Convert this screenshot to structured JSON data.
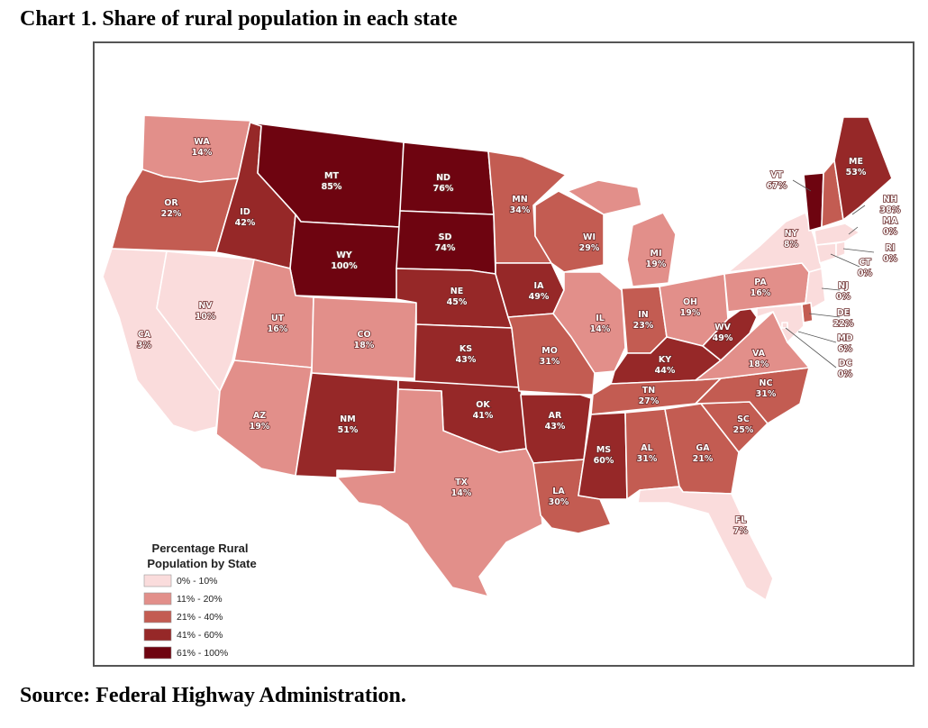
{
  "title": "Chart 1. Share of rural population in each state",
  "source": "Source: Federal Highway Administration.",
  "legend": {
    "title_line1": "Percentage Rural",
    "title_line2": "Population by State",
    "classes": [
      {
        "label": "0% - 10%",
        "color": "#fadcdc"
      },
      {
        "label": "11% - 20%",
        "color": "#e28f8a"
      },
      {
        "label": "21% - 40%",
        "color": "#c35c52"
      },
      {
        "label": "41% - 60%",
        "color": "#962828"
      },
      {
        "label": "61% - 100%",
        "color": "#6e0410"
      }
    ]
  },
  "states": {
    "WA": {
      "code": "WA",
      "value": "14%",
      "class": 1
    },
    "OR": {
      "code": "OR",
      "value": "22%",
      "class": 2
    },
    "CA": {
      "code": "CA",
      "value": "3%",
      "class": 0
    },
    "NV": {
      "code": "NV",
      "value": "10%",
      "class": 0
    },
    "ID": {
      "code": "ID",
      "value": "42%",
      "class": 3
    },
    "MT": {
      "code": "MT",
      "value": "85%",
      "class": 4
    },
    "WY": {
      "code": "WY",
      "value": "100%",
      "class": 4
    },
    "UT": {
      "code": "UT",
      "value": "16%",
      "class": 1
    },
    "AZ": {
      "code": "AZ",
      "value": "19%",
      "class": 1
    },
    "CO": {
      "code": "CO",
      "value": "18%",
      "class": 1
    },
    "NM": {
      "code": "NM",
      "value": "51%",
      "class": 3
    },
    "ND": {
      "code": "ND",
      "value": "76%",
      "class": 4
    },
    "SD": {
      "code": "SD",
      "value": "74%",
      "class": 4
    },
    "NE": {
      "code": "NE",
      "value": "45%",
      "class": 3
    },
    "KS": {
      "code": "KS",
      "value": "43%",
      "class": 3
    },
    "OK": {
      "code": "OK",
      "value": "41%",
      "class": 3
    },
    "TX": {
      "code": "TX",
      "value": "14%",
      "class": 1
    },
    "MN": {
      "code": "MN",
      "value": "34%",
      "class": 2
    },
    "IA": {
      "code": "IA",
      "value": "49%",
      "class": 3
    },
    "MO": {
      "code": "MO",
      "value": "31%",
      "class": 2
    },
    "AR": {
      "code": "AR",
      "value": "43%",
      "class": 3
    },
    "LA": {
      "code": "LA",
      "value": "30%",
      "class": 2
    },
    "WI": {
      "code": "WI",
      "value": "29%",
      "class": 2
    },
    "IL": {
      "code": "IL",
      "value": "14%",
      "class": 1
    },
    "MI": {
      "code": "MI",
      "value": "19%",
      "class": 1
    },
    "IN": {
      "code": "IN",
      "value": "23%",
      "class": 2
    },
    "OH": {
      "code": "OH",
      "value": "19%",
      "class": 1
    },
    "KY": {
      "code": "KY",
      "value": "44%",
      "class": 3
    },
    "TN": {
      "code": "TN",
      "value": "27%",
      "class": 2
    },
    "MS": {
      "code": "MS",
      "value": "60%",
      "class": 3
    },
    "AL": {
      "code": "AL",
      "value": "31%",
      "class": 2
    },
    "GA": {
      "code": "GA",
      "value": "21%",
      "class": 2
    },
    "FL": {
      "code": "FL",
      "value": "7%",
      "class": 0
    },
    "SC": {
      "code": "SC",
      "value": "25%",
      "class": 2
    },
    "NC": {
      "code": "NC",
      "value": "31%",
      "class": 2
    },
    "VA": {
      "code": "VA",
      "value": "18%",
      "class": 1
    },
    "WV": {
      "code": "WV",
      "value": "49%",
      "class": 3
    },
    "PA": {
      "code": "PA",
      "value": "16%",
      "class": 1
    },
    "NY": {
      "code": "NY",
      "value": "8%",
      "class": 0
    },
    "VT": {
      "code": "VT",
      "value": "67%",
      "class": 4
    },
    "NH": {
      "code": "NH",
      "value": "38%",
      "class": 2
    },
    "ME": {
      "code": "ME",
      "value": "53%",
      "class": 3
    },
    "MA": {
      "code": "MA",
      "value": "0%",
      "class": 0
    },
    "RI": {
      "code": "RI",
      "value": "0%",
      "class": 0
    },
    "CT": {
      "code": "CT",
      "value": "0%",
      "class": 0
    },
    "NJ": {
      "code": "NJ",
      "value": "0%",
      "class": 0
    },
    "DE": {
      "code": "DE",
      "value": "22%",
      "class": 2
    },
    "MD": {
      "code": "MD",
      "value": "6%",
      "class": 0
    },
    "DC": {
      "code": "DC",
      "value": "0%",
      "class": 0
    }
  }
}
